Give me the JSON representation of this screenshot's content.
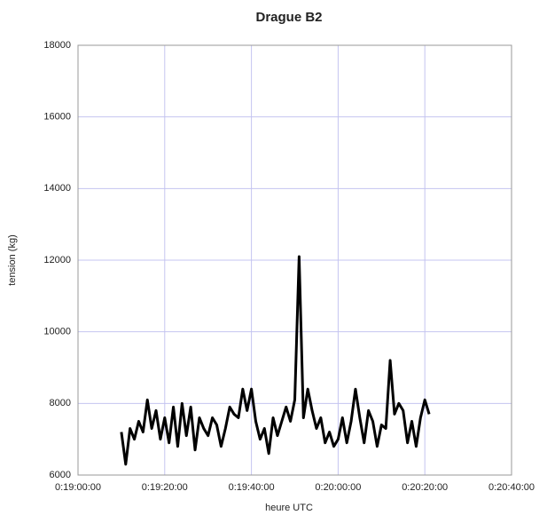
{
  "chart_data": {
    "type": "line",
    "title": "Drague B2",
    "x_label": "heure UTC",
    "y_label": "tension (kg)",
    "x": [
      10,
      11,
      12,
      13,
      14,
      15,
      16,
      17,
      18,
      19,
      20,
      21,
      22,
      23,
      24,
      25,
      26,
      27,
      28,
      29,
      30,
      31,
      32,
      33,
      34,
      35,
      36,
      37,
      38,
      39,
      40,
      41,
      42,
      43,
      44,
      45,
      46,
      47,
      48,
      49,
      50,
      51,
      52,
      53,
      54,
      55,
      56,
      57,
      58,
      59,
      60,
      61,
      62,
      63,
      64,
      65,
      66,
      67,
      68,
      69,
      70,
      71,
      72,
      73,
      74,
      75,
      76,
      77,
      78,
      79,
      80,
      81
    ],
    "series": [
      {
        "name": "tension",
        "color": "#000000",
        "values": [
          7200,
          6300,
          7300,
          7000,
          7500,
          7200,
          8100,
          7300,
          7800,
          7000,
          7600,
          6900,
          7900,
          6800,
          8000,
          7100,
          7900,
          6700,
          7600,
          7300,
          7100,
          7600,
          7400,
          6800,
          7300,
          7900,
          7700,
          7600,
          8400,
          7800,
          8400,
          7500,
          7000,
          7300,
          6600,
          7600,
          7100,
          7500,
          7900,
          7500,
          8100,
          12100,
          7600,
          8400,
          7800,
          7300,
          7600,
          6900,
          7200,
          6800,
          7000,
          7600,
          6900,
          7500,
          8400,
          7600,
          6900,
          7800,
          7500,
          6800,
          7400,
          7300,
          9200,
          7700,
          8000,
          7800,
          6900,
          7500,
          6800,
          7600,
          8100,
          7700
        ]
      }
    ],
    "xlim": [
      0,
      100
    ],
    "xticks": [
      {
        "value": 0,
        "label": "0:19:00:00"
      },
      {
        "value": 20,
        "label": "0:19:20:00"
      },
      {
        "value": 40,
        "label": "0:19:40:00"
      },
      {
        "value": 60,
        "label": "0:20:00:00"
      },
      {
        "value": 80,
        "label": "0:20:20:00"
      },
      {
        "value": 100,
        "label": "0:20:40:00"
      }
    ],
    "ylim": [
      6000,
      18000
    ],
    "yticks": [
      6000,
      8000,
      10000,
      12000,
      14000,
      16000,
      18000
    ],
    "grid": true
  }
}
